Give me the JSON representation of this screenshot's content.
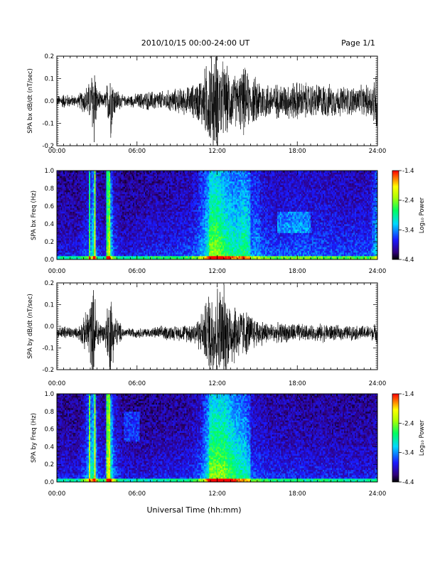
{
  "header": {
    "title": "2010/10/15   00:00-24:00 UT",
    "page": "Page 1/1"
  },
  "xaxis": {
    "label": "Universal Time (hh:mm)",
    "ticks": [
      "00:00",
      "06:00",
      "12:00",
      "18:00",
      "24:00"
    ]
  },
  "colorbar": {
    "label": "Log₁₀ Power",
    "ticks": [
      "-1.4",
      "-2.4",
      "-3.4",
      "-4.4"
    ],
    "range": [
      -4.4,
      -1.4
    ]
  },
  "chart_data": [
    {
      "type": "line",
      "panel": "bx-timeseries",
      "ylabel": "SPA bx dB/dt (nT/sec)",
      "ylim": [
        -0.2,
        0.2
      ],
      "yticks": [
        "0.2",
        "0.1",
        "0.0",
        "-0.1",
        "-0.2"
      ],
      "xlim_hours": [
        0,
        24
      ],
      "envelope": {
        "hours": [
          0,
          0.5,
          1.5,
          2,
          2.5,
          2.8,
          3,
          3.5,
          3.9,
          4,
          4.3,
          5,
          6,
          7,
          8,
          9,
          10,
          10.5,
          11,
          11.5,
          12,
          12.5,
          13,
          13.5,
          14,
          14.5,
          15,
          15.5,
          16,
          17,
          18,
          19,
          20,
          21,
          22,
          23,
          23.5,
          24
        ],
        "amplitude": [
          0.02,
          0.03,
          0.02,
          0.05,
          0.08,
          0.2,
          0.05,
          0.02,
          0.1,
          0.16,
          0.06,
          0.02,
          0.03,
          0.04,
          0.04,
          0.05,
          0.06,
          0.08,
          0.12,
          0.2,
          0.2,
          0.15,
          0.12,
          0.1,
          0.14,
          0.09,
          0.1,
          0.08,
          0.07,
          0.07,
          0.08,
          0.07,
          0.07,
          0.06,
          0.06,
          0.06,
          0.07,
          0.14
        ]
      }
    },
    {
      "type": "heatmap",
      "panel": "bx-spectrogram",
      "ylabel": "SPA bx Freq (Hz)",
      "ylim": [
        0,
        1.0
      ],
      "yticks": [
        "1.0",
        "0.8",
        "0.6",
        "0.4",
        "0.2",
        "0.0"
      ],
      "xlim_hours": [
        0,
        24
      ],
      "zlim_log10": [
        -4.4,
        -1.4
      ]
    },
    {
      "type": "line",
      "panel": "by-timeseries",
      "ylabel": "SPA by dB/dt (nT/sec)",
      "ylim": [
        -0.2,
        0.2
      ],
      "yticks": [
        "0.2",
        "0.1",
        "0.0",
        "-0.1",
        "-0.2"
      ],
      "xlim_hours": [
        0,
        24
      ],
      "envelope": {
        "hours": [
          0,
          0.5,
          1.5,
          2,
          2.5,
          2.8,
          3,
          3.5,
          3.9,
          4,
          4.3,
          5,
          6,
          7,
          8,
          9,
          10,
          10.5,
          11,
          11.5,
          12,
          12.5,
          13,
          13.5,
          14,
          14.5,
          15,
          15.5,
          16,
          17,
          18,
          19,
          20,
          21,
          22,
          23,
          23.5,
          24
        ],
        "amplitude": [
          0.02,
          0.03,
          0.02,
          0.06,
          0.14,
          0.2,
          0.08,
          0.03,
          0.15,
          0.2,
          0.08,
          0.02,
          0.02,
          0.02,
          0.03,
          0.03,
          0.04,
          0.06,
          0.1,
          0.2,
          0.2,
          0.2,
          0.15,
          0.12,
          0.1,
          0.08,
          0.06,
          0.05,
          0.04,
          0.04,
          0.04,
          0.03,
          0.04,
          0.03,
          0.03,
          0.03,
          0.03,
          0.04
        ]
      }
    },
    {
      "type": "heatmap",
      "panel": "by-spectrogram",
      "ylabel": "SPA by Freq (Hz)",
      "ylim": [
        0,
        1.0
      ],
      "yticks": [
        "1.0",
        "0.8",
        "0.6",
        "0.4",
        "0.2",
        "0.0"
      ],
      "xlim_hours": [
        0,
        24
      ],
      "zlim_log10": [
        -4.4,
        -1.4
      ]
    }
  ]
}
